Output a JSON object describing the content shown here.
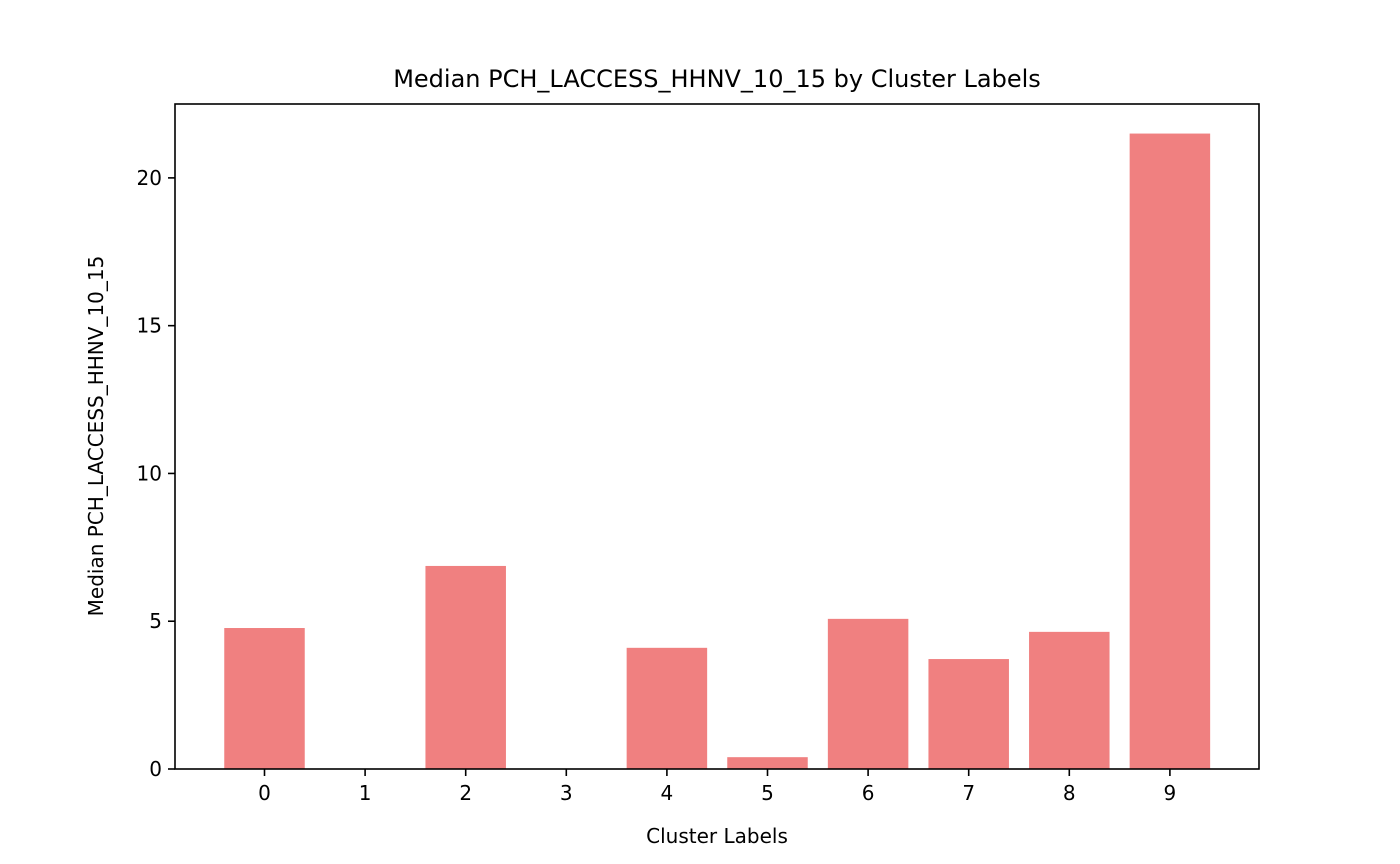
{
  "chart_data": {
    "type": "bar",
    "title": "Median PCH_LACCESS_HHNV_10_15 by Cluster Labels",
    "xlabel": "Cluster Labels",
    "ylabel": "Median PCH_LACCESS_HHNV_10_15",
    "categories": [
      "0",
      "1",
      "2",
      "3",
      "4",
      "5",
      "6",
      "7",
      "8",
      "9"
    ],
    "values": [
      4.77,
      0.0,
      6.87,
      0.0,
      4.1,
      0.4,
      5.08,
      3.72,
      4.64,
      21.5
    ],
    "ylim": [
      0,
      22.5
    ],
    "yticks": [
      0,
      5,
      10,
      15,
      20
    ],
    "bar_color": "#f08080",
    "grid": false,
    "legend": "none"
  }
}
